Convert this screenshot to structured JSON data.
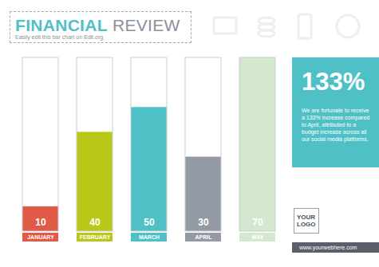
{
  "chart_data": {
    "type": "bar",
    "title": "FINANCIAL REVIEW",
    "subtitle": "Easily edit this bar chart on Edit.org",
    "categories": [
      "JANUARY",
      "FEBRUARY",
      "MARCH",
      "APRIL",
      "MAY"
    ],
    "values": [
      10,
      40,
      50,
      30,
      70
    ],
    "colors": [
      "#e05a47",
      "#b9c716",
      "#4fc1c6",
      "#939aa3",
      "#d3e8cf"
    ],
    "ylim": [
      0,
      70
    ],
    "data_labels": true,
    "tick_labels": "x",
    "annotations": [
      "133%",
      "We are fortunate to receive a 133% increase compared to April, attributed to a budget increase across all our social media platforms.",
      "YOUR LOGO",
      "www.yourwebhere.com"
    ]
  }
}
